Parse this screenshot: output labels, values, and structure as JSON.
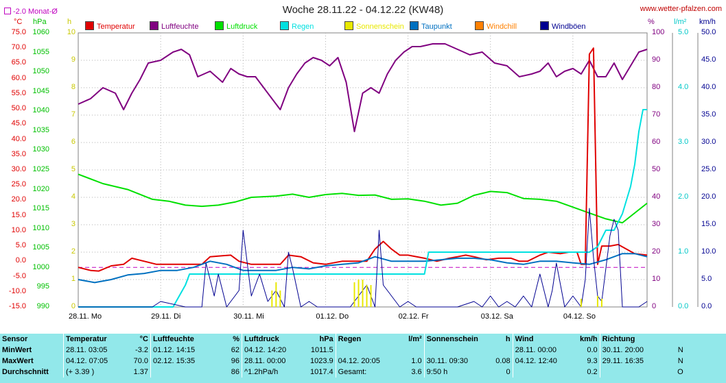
{
  "title": "Woche 28.11.22 - 04.12.22 (KW48)",
  "site": "www.wetter-pfalzen.com",
  "monat_label": "-2.0 Monat-Ø",
  "units": {
    "left1": "°C",
    "left2": "hPa",
    "left3": "h",
    "right1": "%",
    "right2": "l/m²",
    "right3": "km/h"
  },
  "legend": [
    {
      "label": "Temperatur",
      "color": "#e00000"
    },
    {
      "label": "Luftfeuchte",
      "color": "#800080"
    },
    {
      "label": "Luftdruck",
      "color": "#00e000"
    },
    {
      "label": "Regen",
      "color": "#00e0e0"
    },
    {
      "label": "Sonnenschein",
      "color": "#e8e800"
    },
    {
      "label": "Taupunkt",
      "color": "#0070c0"
    },
    {
      "label": "Windchill",
      "color": "#ff8000"
    },
    {
      "label": "Windböen",
      "color": "#000090"
    }
  ],
  "axes": {
    "temp_ticks": [
      "75.0",
      "70.0",
      "65.0",
      "60.0",
      "55.0",
      "50.0",
      "45.0",
      "40.0",
      "35.0",
      "30.0",
      "25.0",
      "20.0",
      "15.0",
      "10.0",
      "5.0",
      "0.0",
      "-5.0",
      "-10.0",
      "-15.0"
    ],
    "hpa_ticks": [
      "1060",
      "1055",
      "1050",
      "1045",
      "1040",
      "1035",
      "1030",
      "1025",
      "1020",
      "1015",
      "1010",
      "1005",
      "1000",
      "995",
      "990"
    ],
    "h_ticks": [
      "10",
      "9",
      "8",
      "7",
      "6",
      "5",
      "4",
      "3",
      "2",
      "1",
      "0"
    ],
    "pct_ticks": [
      "100",
      "90",
      "80",
      "70",
      "60",
      "50",
      "40",
      "30",
      "20",
      "10",
      "0"
    ],
    "rain_ticks": [
      "5.0",
      "4.0",
      "3.0",
      "2.0",
      "1.0",
      "0.0"
    ],
    "wind_ticks": [
      "50.0",
      "45.0",
      "40.0",
      "35.0",
      "30.0",
      "25.0",
      "20.0",
      "15.0",
      "10.0",
      "5.0",
      "0.0"
    ],
    "day_labels": [
      "28.11. Mo",
      "29.11. Di",
      "30.11. Mi",
      "01.12. Do",
      "02.12. Fr",
      "03.12. Sa",
      "04.12. So"
    ]
  },
  "chart_data": {
    "type": "line",
    "title": "Woche 28.11.22 - 04.12.22 (KW48)",
    "x_unit": "days since 28.11. 00:00",
    "xlim": [
      0,
      6.9
    ],
    "monthly_mean_temp": -2.0,
    "series": [
      {
        "name": "Luftfeuchte",
        "unit": "%",
        "color": "#800080",
        "x": [
          0,
          0.15,
          0.3,
          0.45,
          0.55,
          0.65,
          0.75,
          0.85,
          1.0,
          1.15,
          1.25,
          1.35,
          1.45,
          1.6,
          1.75,
          1.85,
          1.95,
          2.05,
          2.15,
          2.3,
          2.45,
          2.55,
          2.65,
          2.75,
          2.85,
          2.95,
          3.05,
          3.15,
          3.25,
          3.35,
          3.45,
          3.55,
          3.65,
          3.75,
          3.85,
          3.95,
          4.05,
          4.15,
          4.3,
          4.45,
          4.6,
          4.75,
          4.9,
          5.05,
          5.2,
          5.35,
          5.5,
          5.6,
          5.7,
          5.8,
          5.9,
          6.0,
          6.1,
          6.2,
          6.3,
          6.4,
          6.5,
          6.6,
          6.7,
          6.8,
          6.9
        ],
        "y": [
          74,
          76,
          80,
          78,
          72,
          78,
          83,
          89,
          90,
          93,
          94,
          92,
          84,
          86,
          82,
          87,
          85,
          84,
          84,
          78,
          72,
          80,
          85,
          89,
          91,
          90,
          88,
          91,
          82,
          64,
          78,
          80,
          78,
          85,
          90,
          93,
          95,
          95,
          96,
          96,
          94,
          92,
          93,
          89,
          88,
          84,
          85,
          86,
          89,
          84,
          86,
          87,
          85,
          90,
          84,
          84,
          89,
          83,
          88,
          93,
          94
        ]
      },
      {
        "name": "Luftdruck",
        "unit": "hPa",
        "color": "#00e000",
        "x": [
          0,
          0.3,
          0.6,
          0.9,
          1.1,
          1.3,
          1.5,
          1.7,
          1.9,
          2.1,
          2.4,
          2.6,
          2.8,
          3.0,
          3.2,
          3.4,
          3.6,
          3.8,
          4.0,
          4.2,
          4.4,
          4.6,
          4.8,
          5.0,
          5.2,
          5.4,
          5.6,
          5.8,
          6.0,
          6.2,
          6.4,
          6.6,
          6.75,
          6.9
        ],
        "y": [
          1023.9,
          1021.5,
          1020,
          1017.5,
          1017,
          1016,
          1015.7,
          1016,
          1016.8,
          1018,
          1018.3,
          1018.8,
          1018,
          1018.7,
          1019,
          1018.5,
          1018.6,
          1017.5,
          1017.6,
          1017,
          1016,
          1016.5,
          1018.5,
          1019.5,
          1019.2,
          1017.7,
          1017.5,
          1017,
          1015.5,
          1014,
          1012.5,
          1011.5,
          1014,
          1016.5
        ]
      },
      {
        "name": "Temperatur",
        "unit": "°C",
        "color": "#e00000",
        "x": [
          0,
          0.15,
          0.25,
          0.4,
          0.55,
          0.65,
          0.8,
          0.95,
          1.1,
          1.3,
          1.4,
          1.5,
          1.6,
          1.75,
          1.85,
          1.95,
          2.1,
          2.3,
          2.45,
          2.55,
          2.7,
          2.85,
          3.0,
          3.2,
          3.35,
          3.5,
          3.6,
          3.7,
          3.8,
          3.9,
          4.0,
          4.2,
          4.35,
          4.5,
          4.6,
          4.7,
          4.8,
          4.95,
          5.1,
          5.25,
          5.35,
          5.45,
          5.6,
          5.7,
          5.85,
          5.95,
          6.05,
          6.1,
          6.15,
          6.2,
          6.25,
          6.3,
          6.35,
          6.45,
          6.55,
          6.65,
          6.75,
          6.9
        ],
        "y": [
          -2,
          -3,
          -3.2,
          -1.5,
          -1,
          1,
          0,
          -1,
          -1,
          -1,
          -1,
          -1,
          1.5,
          1.8,
          2,
          0,
          -1,
          -1,
          -1,
          2,
          1.5,
          -0.5,
          -1,
          0,
          0,
          0,
          4,
          6.5,
          4,
          2,
          2,
          1,
          0,
          1,
          1.5,
          2,
          1.5,
          0.5,
          1,
          1,
          0,
          0,
          2,
          3,
          2.5,
          3,
          3,
          -1,
          -1,
          68,
          70,
          -1,
          5,
          5,
          5.5,
          4,
          2.5,
          2
        ]
      },
      {
        "name": "Taupunkt",
        "unit": "°C",
        "color": "#0070c0",
        "x": [
          0,
          0.2,
          0.4,
          0.6,
          0.8,
          1.0,
          1.2,
          1.4,
          1.6,
          1.8,
          2.0,
          2.2,
          2.4,
          2.6,
          2.8,
          3.0,
          3.2,
          3.4,
          3.6,
          3.8,
          4.0,
          4.2,
          4.4,
          4.6,
          4.8,
          5.0,
          5.2,
          5.4,
          5.6,
          5.8,
          6.0,
          6.2,
          6.4,
          6.6,
          6.75,
          6.9
        ],
        "y": [
          -6,
          -7,
          -6,
          -4.5,
          -4,
          -3,
          -3,
          -2,
          0,
          -1,
          -3,
          -3,
          -3,
          -2,
          -2.5,
          -1.5,
          -1,
          -0.5,
          1.5,
          0,
          0,
          0,
          0.5,
          1,
          1,
          0.5,
          -0.5,
          -1,
          0,
          0,
          -0.5,
          -1,
          0.5,
          2.5,
          2.5,
          1.5
        ]
      },
      {
        "name": "Regen",
        "unit": "l/m²",
        "color": "#00e0e0",
        "x": [
          0,
          1.0,
          1.15,
          1.3,
          1.35,
          4.1,
          4.2,
          4.25,
          5.6,
          6.0,
          6.2,
          6.3,
          6.4,
          6.5,
          6.6,
          6.7,
          6.75,
          6.8,
          6.85,
          6.9
        ],
        "y": [
          0,
          0,
          0,
          0.4,
          0.6,
          0.6,
          0.6,
          1.0,
          1.0,
          1.0,
          1.0,
          1.1,
          1.4,
          1.4,
          1.7,
          2.2,
          2.6,
          3.2,
          3.6,
          3.6
        ]
      },
      {
        "name": "Windböen",
        "unit": "km/h",
        "color": "#000090",
        "x": [
          0,
          0.5,
          0.9,
          1.0,
          1.3,
          1.5,
          1.55,
          1.6,
          1.65,
          1.7,
          1.8,
          1.95,
          2.0,
          2.1,
          2.2,
          2.3,
          2.4,
          2.5,
          2.55,
          2.6,
          2.7,
          2.8,
          2.9,
          3.1,
          3.3,
          3.4,
          3.5,
          3.6,
          3.65,
          3.7,
          3.8,
          3.9,
          4.0,
          4.1,
          4.3,
          4.6,
          4.8,
          4.9,
          5.0,
          5.1,
          5.2,
          5.3,
          5.4,
          5.5,
          5.6,
          5.7,
          5.75,
          5.8,
          5.9,
          6.0,
          6.1,
          6.15,
          6.2,
          6.25,
          6.3,
          6.35,
          6.45,
          6.5,
          6.55,
          6.6,
          6.7,
          6.8,
          6.9
        ],
        "y": [
          0,
          0,
          0,
          1,
          0,
          0,
          8,
          5,
          2,
          6,
          0,
          3,
          14,
          2,
          6,
          1,
          3,
          0,
          10,
          7,
          0,
          1,
          0,
          0,
          0,
          2,
          4,
          0,
          14,
          4,
          2,
          0,
          1,
          0,
          0,
          0,
          1,
          0,
          2,
          0,
          1,
          0,
          2,
          0,
          6,
          0,
          3,
          8,
          0,
          2,
          0,
          5,
          18,
          9,
          2,
          1,
          13,
          16,
          14,
          0,
          0,
          0,
          1
        ]
      },
      {
        "name": "Sonnenschein",
        "unit": "h",
        "color": "#e8e800",
        "x": [
          2.35,
          2.4,
          2.45,
          3.35,
          3.4,
          3.45,
          3.5,
          3.55,
          6.1,
          6.3,
          6.35
        ],
        "y": [
          0.6,
          0.9,
          0.6,
          0.9,
          1.0,
          1.0,
          0.8,
          0.8,
          0.3,
          0.4,
          0.3
        ]
      }
    ]
  },
  "stats": {
    "header": [
      "Sensor",
      "Temperatur",
      "°C",
      "Luftfeuchte",
      "%",
      "Luftdruck",
      "hPa",
      "Regen",
      "l/m²",
      "Sonnenschein",
      "h",
      "Wind",
      "km/h",
      "Richtung",
      ""
    ],
    "rows": [
      [
        "MinWert",
        "28.11.  03:05",
        "-3.2",
        "01.12.  14:15",
        "62",
        "04.12.  14:20",
        "1011.5",
        "",
        "",
        "",
        "",
        "28.11.  00:00",
        "0.0",
        "30.11.  20:00",
        "N"
      ],
      [
        "MaxWert",
        "04.12.  07:05",
        "70.0",
        "02.12.  15:35",
        "96",
        "28.11.  00:00",
        "1023.9",
        "04.12.  20:05",
        "1.0",
        "30.11.  09:30",
        "0.08",
        "04.12.  12:40",
        "9.3",
        "29.11.  16:35",
        "N"
      ],
      [
        "Durchschnitt",
        "(+ 3.39 )",
        "1.37",
        "",
        "86",
        "^1.2hPa/h",
        "1017.4",
        "Gesamt:",
        "3.6",
        "9:50 h",
        "0",
        "",
        "0.2",
        "",
        "O"
      ]
    ]
  }
}
